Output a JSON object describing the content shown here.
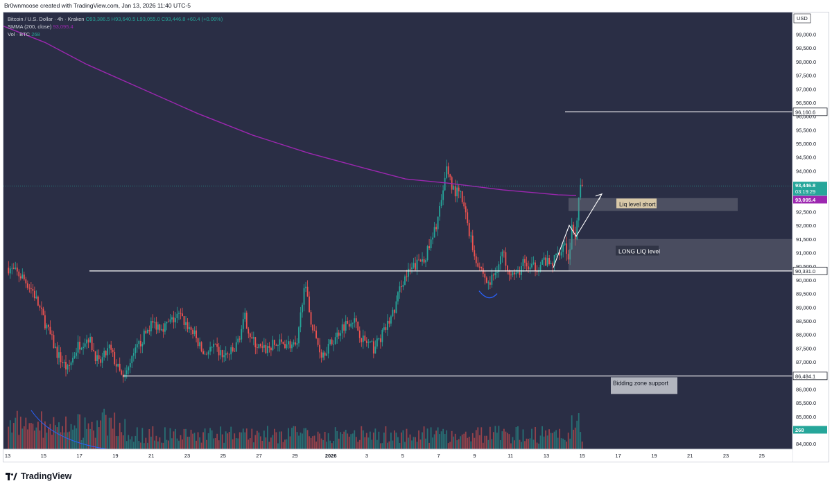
{
  "header": {
    "attribution": "Br0wnmoose created with TradingView.com, Jan 13, 2026 11:40 UTC-5"
  },
  "legend": {
    "symbol": "Bitcoin / U.S. Dollar · 4h · Kraken",
    "ohlc": "O93,386.5  H93,640.5  L93,055.0  C93,446.8  +60.4 (+0.06%)",
    "sma_label": "SMMA (200, close)",
    "sma_value": "93,095.4",
    "vol_label": "Vol · BTC",
    "vol_value": "268"
  },
  "footer": {
    "brand": "TradingView"
  },
  "chart_data": {
    "type": "candlestick",
    "currency": "USD",
    "ylim": [
      83800,
      99800
    ],
    "y_ticks": [
      "99,000.0",
      "98,500.0",
      "98,000.0",
      "97,500.0",
      "97,000.0",
      "96,500.0",
      "96,000.0",
      "95,500.0",
      "95,000.0",
      "94,500.0",
      "94,000.0",
      "93,500.0",
      "93,000.0",
      "92,500.0",
      "92,000.0",
      "91,500.0",
      "91,000.0",
      "90,500.0",
      "90,000.0",
      "89,500.0",
      "89,000.0",
      "88,500.0",
      "88,000.0",
      "87,500.0",
      "87,000.0",
      "86,500.0",
      "86,000.0",
      "85,500.0",
      "85,000.0",
      "84,500.0",
      "84,000.0"
    ],
    "x_ticks": [
      "13",
      "15",
      "17",
      "19",
      "21",
      "23",
      "25",
      "27",
      "29",
      "2026",
      "3",
      "5",
      "7",
      "9",
      "11",
      "13",
      "15",
      "17",
      "19",
      "21",
      "23",
      "25"
    ],
    "last_price": "93,446.8",
    "countdown": "03:19:29",
    "sma_value_tag": "93,095.4",
    "volume_tag": "268",
    "levels": [
      {
        "price_label": "96,160.6"
      },
      {
        "price_label": "90,331.0"
      },
      {
        "price_label": "86,484.1"
      }
    ],
    "zones": [
      {
        "label": "Liq level short"
      },
      {
        "label": "LONG LIQ level"
      },
      {
        "label": "Bidding zone support"
      }
    ],
    "colors": {
      "background": "#2a2e45",
      "up": "#26a69a",
      "down": "#ef5350",
      "sma": "#9c27b0",
      "axis_bg": "#ffffff"
    }
  }
}
